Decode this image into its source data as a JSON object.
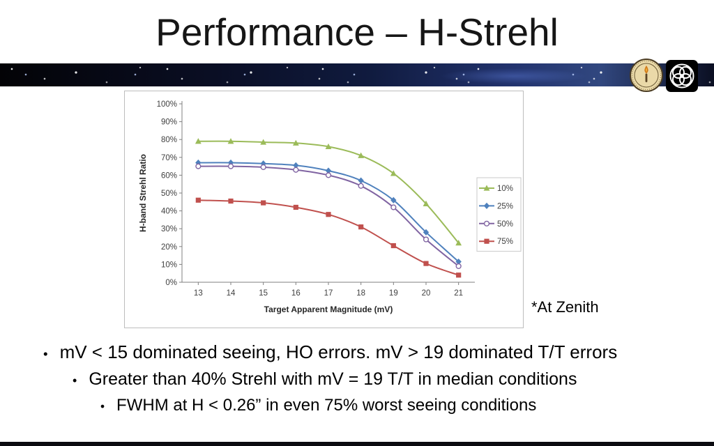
{
  "slide": {
    "title": "Performance – H-Strehl",
    "at_zenith_note": "*At Zenith",
    "bullet_char": "•",
    "bullets": [
      "mV < 15 dominated seeing, HO errors. mV > 19 dominated T/T errors",
      "Greater than 40% Strehl with mV = 19 T/T in median conditions",
      "FWHM at H < 0.26” in even 75% worst seeing conditions"
    ]
  },
  "logos": {
    "seal": "institute-seal",
    "atom": "interlocking-rings-emblem"
  },
  "chart_data": {
    "type": "line",
    "x": [
      13,
      14,
      15,
      16,
      17,
      18,
      19,
      20,
      21
    ],
    "series": [
      {
        "name": "10%",
        "color": "#9BBB59",
        "marker": "triangle",
        "values": [
          79,
          79,
          78.5,
          78,
          76,
          71,
          61,
          44,
          22
        ]
      },
      {
        "name": "25%",
        "color": "#4F81BD",
        "marker": "diamond",
        "values": [
          67,
          67,
          66.5,
          65.5,
          62.5,
          57,
          46,
          28,
          11.5
        ]
      },
      {
        "name": "50%",
        "color": "#8064A2",
        "marker": "circle",
        "values": [
          65,
          65,
          64.5,
          63,
          60,
          54,
          42,
          24,
          9
        ]
      },
      {
        "name": "75%",
        "color": "#C0504D",
        "marker": "square",
        "values": [
          46,
          45.5,
          44.5,
          42,
          38,
          31,
          20.5,
          10.5,
          4
        ]
      }
    ],
    "title": "",
    "xlabel": "Target Apparent Magnitude (mV)",
    "ylabel": "H-band Strehl Ratio",
    "ylim": [
      0,
      100
    ],
    "yticks": [
      "0%",
      "10%",
      "20%",
      "30%",
      "40%",
      "50%",
      "60%",
      "70%",
      "80%",
      "90%",
      "100%"
    ],
    "legend_position": "right",
    "grid": false
  }
}
